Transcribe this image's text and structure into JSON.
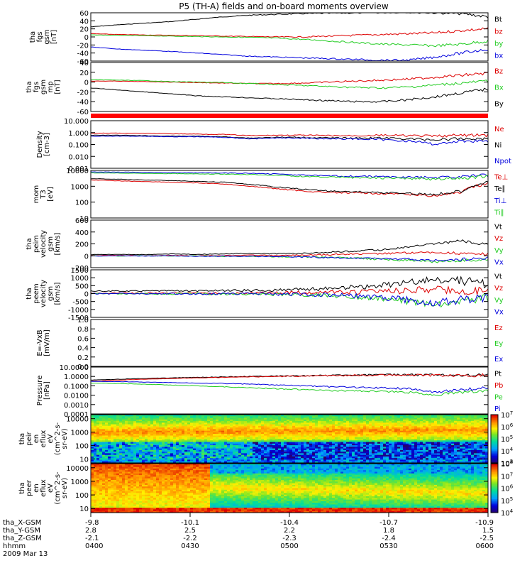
{
  "title": "P5 (TH-A) fields and on-board moments overview",
  "colors": {
    "black": "#000000",
    "red": "#dd0000",
    "green": "#22cc22",
    "blue": "#0000dd",
    "panel_red_bar": "#ff0000"
  },
  "chart_data": [
    {
      "id": "fgs-gsm",
      "type": "line",
      "ylabel_lines": [
        "tha",
        "fgs",
        "gsm",
        "[nT]"
      ],
      "ylim": [
        -60,
        60
      ],
      "ticks": [
        "-60",
        "-40",
        "-20",
        "0",
        "20",
        "40",
        "60"
      ],
      "tick_values": [
        -60,
        -40,
        -20,
        0,
        20,
        40,
        60
      ],
      "series": [
        {
          "name": "Bt",
          "color": "black",
          "values": [
            25,
            30,
            34,
            38,
            44,
            50,
            54,
            56,
            58,
            59,
            60,
            61,
            62,
            60,
            58,
            50
          ]
        },
        {
          "name": "bz",
          "color": "red",
          "values": [
            8,
            6,
            5,
            4,
            3,
            2,
            1,
            0,
            0,
            2,
            4,
            6,
            8,
            10,
            16,
            20
          ]
        },
        {
          "name": "by",
          "color": "green",
          "values": [
            5,
            4,
            3,
            2,
            1,
            0,
            -1,
            -3,
            -6,
            -10,
            -14,
            -18,
            -20,
            -22,
            -18,
            -10
          ]
        },
        {
          "name": "bx",
          "color": "blue",
          "values": [
            -25,
            -30,
            -33,
            -36,
            -40,
            -44,
            -48,
            -50,
            -52,
            -54,
            -56,
            -58,
            -58,
            -50,
            -40,
            -30
          ]
        }
      ]
    },
    {
      "id": "fgs-mp",
      "type": "line",
      "ylabel_lines": [
        "tha",
        "fgs",
        "gsm",
        "mp",
        "[nT]"
      ],
      "ylim": [
        -60,
        40
      ],
      "ticks": [
        "-60",
        "-40",
        "-20",
        "0",
        "20",
        "40"
      ],
      "tick_values": [
        -60,
        -40,
        -20,
        0,
        20,
        40
      ],
      "series": [
        {
          "name": "Bz",
          "color": "red",
          "values": [
            2,
            2,
            1,
            0,
            -1,
            -2,
            -3,
            -3,
            -2,
            0,
            2,
            4,
            6,
            10,
            14,
            18
          ]
        },
        {
          "name": "Bx",
          "color": "green",
          "values": [
            5,
            4,
            3,
            1,
            0,
            -1,
            -3,
            -5,
            -7,
            -9,
            -11,
            -12,
            -10,
            -6,
            -2,
            2
          ]
        },
        {
          "name": "By",
          "color": "black",
          "values": [
            -12,
            -16,
            -20,
            -24,
            -28,
            -30,
            -32,
            -34,
            -36,
            -38,
            -40,
            -40,
            -36,
            -30,
            -22,
            -14
          ]
        }
      ]
    },
    {
      "id": "density",
      "type": "line",
      "scale": "log",
      "ylabel_lines": [
        "Density",
        "[cm-3]"
      ],
      "ylim": [
        0.001,
        10
      ],
      "ticks": [
        "10.000",
        "1.000",
        "0.100",
        "0.010",
        "0.001"
      ],
      "tick_values": [
        10,
        1,
        0.1,
        0.01,
        0.001
      ],
      "series": [
        {
          "name": "Ne",
          "color": "red",
          "values": [
            0.9,
            0.9,
            0.85,
            0.8,
            0.75,
            0.7,
            0.55,
            0.6,
            0.6,
            0.55,
            0.55,
            0.6,
            0.55,
            0.5,
            0.6,
            0.6
          ]
        },
        {
          "name": "Ni",
          "color": "black",
          "values": [
            0.6,
            0.6,
            0.55,
            0.5,
            0.5,
            0.45,
            0.35,
            0.4,
            0.4,
            0.35,
            0.35,
            0.35,
            0.3,
            0.25,
            0.3,
            0.3
          ]
        },
        {
          "name": "Npot",
          "color": "blue",
          "values": [
            0.5,
            0.5,
            0.5,
            0.45,
            0.45,
            0.4,
            0.3,
            0.35,
            0.35,
            0.3,
            0.3,
            0.25,
            0.2,
            0.1,
            0.2,
            0.2
          ]
        }
      ]
    },
    {
      "id": "temp",
      "type": "line",
      "scale": "log",
      "ylabel_lines": [
        "mom",
        "T3",
        "[eV]"
      ],
      "ylim": [
        10,
        10000
      ],
      "ticks": [
        "10000",
        "1000",
        "100",
        "10"
      ],
      "tick_values": [
        10000,
        1000,
        100,
        10
      ],
      "series": [
        {
          "name": "Te⊥",
          "color": "red",
          "values": [
            2500,
            2200,
            2000,
            1800,
            1600,
            1400,
            1000,
            700,
            500,
            400,
            380,
            350,
            300,
            250,
            400,
            1500
          ]
        },
        {
          "name": "Te∥",
          "color": "black",
          "values": [
            3000,
            2800,
            2500,
            2300,
            2000,
            1800,
            1300,
            900,
            650,
            500,
            450,
            400,
            350,
            300,
            500,
            1800
          ]
        },
        {
          "name": "Ti⊥",
          "color": "blue",
          "values": [
            8000,
            7800,
            7500,
            7200,
            7000,
            6800,
            6500,
            6000,
            5000,
            4500,
            4200,
            4000,
            3800,
            3500,
            4000,
            5000
          ]
        },
        {
          "name": "Ti∥",
          "color": "green",
          "values": [
            7000,
            6800,
            6500,
            6300,
            6000,
            5800,
            5500,
            5000,
            4200,
            3800,
            3500,
            3300,
            3100,
            2800,
            3200,
            4200
          ]
        }
      ]
    },
    {
      "id": "peim-v",
      "type": "line",
      "ylabel_lines": [
        "tha",
        "peim",
        "velocity",
        "gsm",
        "[km/s]"
      ],
      "ylim": [
        -200,
        600
      ],
      "ticks": [
        "-200",
        "0",
        "200",
        "400",
        "600"
      ],
      "tick_values": [
        -200,
        0,
        200,
        400,
        600
      ],
      "series": [
        {
          "name": "Vt",
          "color": "black",
          "values": [
            20,
            25,
            20,
            30,
            25,
            30,
            40,
            35,
            40,
            60,
            80,
            100,
            150,
            200,
            250,
            180
          ]
        },
        {
          "name": "Vz",
          "color": "red",
          "values": [
            5,
            5,
            0,
            5,
            0,
            5,
            10,
            5,
            10,
            20,
            30,
            40,
            50,
            60,
            40,
            30
          ]
        },
        {
          "name": "Vy",
          "color": "green",
          "values": [
            0,
            -5,
            0,
            -5,
            0,
            -10,
            -10,
            -15,
            -20,
            -30,
            -40,
            -60,
            -80,
            -100,
            -80,
            -60
          ]
        },
        {
          "name": "Vx",
          "color": "blue",
          "values": [
            -5,
            0,
            -5,
            0,
            -10,
            -5,
            -10,
            -10,
            -20,
            -30,
            -40,
            -50,
            -60,
            -80,
            -60,
            -40
          ]
        }
      ]
    },
    {
      "id": "peem-v",
      "type": "line",
      "ylabel_lines": [
        "tha",
        "peem",
        "velocity",
        "gsm",
        "[km/s]"
      ],
      "ylim": [
        -1500,
        1500
      ],
      "ticks": [
        "-1500",
        "-1000",
        "-500",
        "0",
        "500",
        "1000",
        "1500"
      ],
      "tick_values": [
        -1500,
        -1000,
        -500,
        0,
        500,
        1000,
        1500
      ],
      "series": [
        {
          "name": "Vt",
          "color": "black",
          "values": [
            150,
            160,
            170,
            180,
            170,
            180,
            200,
            220,
            260,
            300,
            400,
            500,
            700,
            900,
            800,
            600
          ]
        },
        {
          "name": "Vz",
          "color": "red",
          "values": [
            20,
            30,
            20,
            30,
            20,
            30,
            40,
            50,
            60,
            80,
            100,
            150,
            200,
            250,
            200,
            150
          ]
        },
        {
          "name": "Vy",
          "color": "green",
          "values": [
            0,
            -20,
            0,
            -20,
            0,
            -30,
            -40,
            -50,
            -80,
            -120,
            -200,
            -300,
            -500,
            -700,
            -500,
            -300
          ]
        },
        {
          "name": "Vx",
          "color": "blue",
          "values": [
            -10,
            0,
            -10,
            0,
            -20,
            -10,
            -20,
            -30,
            -50,
            -80,
            -150,
            -250,
            -400,
            -600,
            -400,
            -200
          ]
        }
      ]
    },
    {
      "id": "efield",
      "type": "line",
      "ylabel_lines": [
        "E=-VxB",
        "[mV/m]"
      ],
      "ylim": [
        0,
        1
      ],
      "ticks": [
        "0.0",
        "0.2",
        "0.4",
        "0.6",
        "0.8",
        "1.0"
      ],
      "tick_values": [
        0,
        0.2,
        0.4,
        0.6,
        0.8,
        1.0
      ],
      "series": [
        {
          "name": "Ez",
          "color": "red",
          "values": []
        },
        {
          "name": "Ey",
          "color": "green",
          "values": []
        },
        {
          "name": "Ex",
          "color": "blue",
          "values": []
        }
      ]
    },
    {
      "id": "pressure",
      "type": "line",
      "scale": "log",
      "ylabel_lines": [
        "Pressure",
        "[nPa]"
      ],
      "ylim": [
        0.0001,
        10
      ],
      "ticks": [
        "10.0000",
        "1.0000",
        "0.1000",
        "0.0100",
        "0.0010",
        "0.0001"
      ],
      "tick_values": [
        10,
        1,
        0.1,
        0.01,
        0.001,
        0.0001
      ],
      "series": [
        {
          "name": "Pt",
          "color": "black",
          "values": [
            0.4,
            0.5,
            0.6,
            0.7,
            0.8,
            0.9,
            1.0,
            1.1,
            1.2,
            1.3,
            1.4,
            1.5,
            1.5,
            1.4,
            1.3,
            1.5
          ]
        },
        {
          "name": "Pb",
          "color": "red",
          "values": [
            0.3,
            0.4,
            0.5,
            0.6,
            0.7,
            0.8,
            0.9,
            1.0,
            1.1,
            1.2,
            1.3,
            1.4,
            1.4,
            1.3,
            1.2,
            1.4
          ]
        },
        {
          "name": "Pe",
          "color": "green",
          "values": [
            0.2,
            0.18,
            0.15,
            0.12,
            0.1,
            0.08,
            0.06,
            0.05,
            0.04,
            0.03,
            0.03,
            0.025,
            0.02,
            0.01,
            0.02,
            0.03
          ]
        },
        {
          "name": "Pi",
          "color": "blue",
          "values": [
            0.3,
            0.28,
            0.25,
            0.22,
            0.2,
            0.18,
            0.15,
            0.12,
            0.1,
            0.08,
            0.07,
            0.06,
            0.05,
            0.02,
            0.04,
            0.06
          ]
        }
      ]
    },
    {
      "id": "peir-spec",
      "type": "heatmap",
      "scale": "log",
      "ylabel_lines": [
        "tha",
        "peir",
        "en",
        "eflux",
        "eV",
        "(cm^2-s-",
        "sr-eV)"
      ],
      "ylim": [
        5,
        20000
      ],
      "ticks": [
        "10000",
        "1000",
        "100",
        "10"
      ],
      "tick_values": [
        10000,
        1000,
        100,
        10
      ],
      "colorbar": {
        "labels": [
          "10^7",
          "10^6",
          "10^5",
          "10^4",
          "10^3"
        ],
        "exponents": [
          7,
          6,
          5,
          4,
          3
        ],
        "range": [
          3,
          7
        ]
      }
    },
    {
      "id": "peer-spec",
      "type": "heatmap",
      "scale": "log",
      "ylabel_lines": [
        "tha",
        "peer",
        "en",
        "eflux",
        "eV",
        "(cm^2-s-",
        "sr-eV)"
      ],
      "ylim": [
        5,
        20000
      ],
      "ticks": [
        "10000",
        "1000",
        "100",
        "10"
      ],
      "tick_values": [
        10000,
        1000,
        100,
        10
      ],
      "colorbar": {
        "labels": [
          "10^8",
          "10^7",
          "10^6",
          "10^5",
          "10^4"
        ],
        "exponents": [
          8,
          7,
          6,
          5,
          4
        ],
        "range": [
          4,
          8
        ]
      }
    }
  ],
  "xaxis": {
    "row_labels": [
      "tha_X-GSM",
      "tha_Y-GSM",
      "tha_Z-GSM",
      "hhmm",
      "2009 Mar 13"
    ],
    "ticks": [
      {
        "pos": 0.0,
        "vals": [
          "-9.8",
          "2.8",
          "-2.1",
          "0400"
        ]
      },
      {
        "pos": 0.25,
        "vals": [
          "-10.1",
          "2.5",
          "-2.2",
          "0430"
        ]
      },
      {
        "pos": 0.5,
        "vals": [
          "-10.4",
          "2.2",
          "-2.3",
          "0500"
        ]
      },
      {
        "pos": 0.75,
        "vals": [
          "-10.7",
          "1.8",
          "-2.4",
          "0530"
        ]
      },
      {
        "pos": 1.0,
        "vals": [
          "-10.9",
          "1.5",
          "-2.5",
          "0600"
        ]
      }
    ]
  }
}
